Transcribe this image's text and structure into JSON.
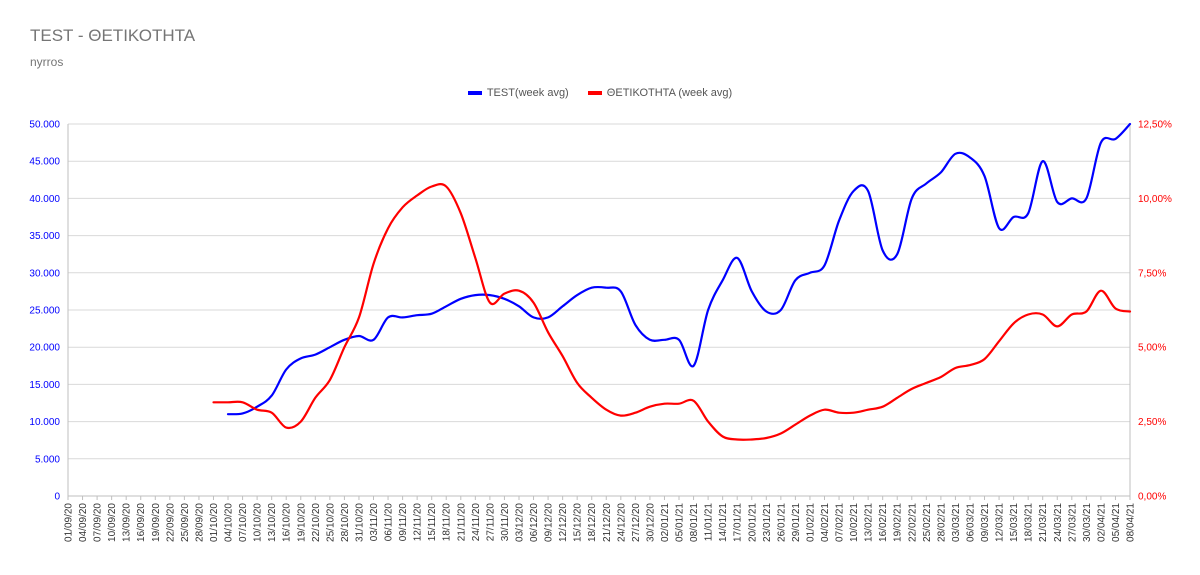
{
  "title": "TEST - ΘΕΤΙΚΟΤΗΤΑ",
  "subtitle": "nyrros",
  "chart_data": {
    "type": "line",
    "legend_position": "top-center",
    "grid": true,
    "x": [
      "01/09/20",
      "04/09/20",
      "07/09/20",
      "10/09/20",
      "13/09/20",
      "16/09/20",
      "19/09/20",
      "22/09/20",
      "25/09/20",
      "28/09/20",
      "01/10/20",
      "04/10/20",
      "07/10/20",
      "10/10/20",
      "13/10/20",
      "16/10/20",
      "19/10/20",
      "22/10/20",
      "25/10/20",
      "28/10/20",
      "31/10/20",
      "03/11/20",
      "06/11/20",
      "09/11/20",
      "12/11/20",
      "15/11/20",
      "18/11/20",
      "21/11/20",
      "24/11/20",
      "27/11/20",
      "30/11/20",
      "03/12/20",
      "06/12/20",
      "09/12/20",
      "12/12/20",
      "15/12/20",
      "18/12/20",
      "21/12/20",
      "24/12/20",
      "27/12/20",
      "30/12/20",
      "02/01/21",
      "05/01/21",
      "08/01/21",
      "11/01/21",
      "14/01/21",
      "17/01/21",
      "20/01/21",
      "23/01/21",
      "26/01/21",
      "29/01/21",
      "01/02/21",
      "04/02/21",
      "07/02/21",
      "10/02/21",
      "13/02/21",
      "16/02/21",
      "19/02/21",
      "22/02/21",
      "25/02/21",
      "28/02/21",
      "03/03/21",
      "06/03/21",
      "09/03/21",
      "12/03/21",
      "15/03/21",
      "18/03/21",
      "21/03/21",
      "24/03/21",
      "27/03/21",
      "30/03/21",
      "02/04/21",
      "05/04/21",
      "08/04/21"
    ],
    "y_left": {
      "ticks": [
        "0",
        "5.000",
        "10.000",
        "15.000",
        "20.000",
        "25.000",
        "30.000",
        "35.000",
        "40.000",
        "45.000",
        "50.000"
      ],
      "range": [
        0,
        50000
      ],
      "color": "#0000ff"
    },
    "y_right": {
      "ticks": [
        "0,00%",
        "2,50%",
        "5,00%",
        "7,50%",
        "10,00%",
        "12,50%"
      ],
      "range": [
        0,
        12.5
      ],
      "color": "#ff0000"
    },
    "series": [
      {
        "name": "TEST(week avg)",
        "axis": "left",
        "color": "#0000ff",
        "values": [
          null,
          null,
          null,
          null,
          null,
          null,
          null,
          null,
          null,
          null,
          null,
          11000,
          11100,
          12000,
          13500,
          17000,
          18500,
          19000,
          20000,
          21000,
          21500,
          21000,
          24000,
          24000,
          24300,
          24500,
          25500,
          26500,
          27000,
          27000,
          26500,
          25500,
          24000,
          24000,
          25500,
          27000,
          28000,
          28000,
          27500,
          23000,
          21000,
          21000,
          21000,
          17500,
          25000,
          29000,
          32000,
          27500,
          24800,
          25000,
          29000,
          30000,
          31000,
          37000,
          41000,
          41000,
          33000,
          32500,
          40000,
          42000,
          43500,
          46000,
          45500,
          43000,
          36000,
          37500,
          38000,
          45000,
          39500,
          40000,
          40000,
          47500,
          48000,
          50000
        ]
      },
      {
        "name": "ΘΕΤΙΚΟΤΗΤΑ (week avg)",
        "axis": "right",
        "color": "#ff0000",
        "values": [
          null,
          null,
          null,
          null,
          null,
          null,
          null,
          null,
          null,
          null,
          3.15,
          3.15,
          3.15,
          2.9,
          2.8,
          2.3,
          2.5,
          3.3,
          3.9,
          5.0,
          6.0,
          7.8,
          9.0,
          9.7,
          10.1,
          10.4,
          10.4,
          9.5,
          8.0,
          6.5,
          6.8,
          6.9,
          6.5,
          5.5,
          4.7,
          3.8,
          3.3,
          2.9,
          2.7,
          2.8,
          3.0,
          3.1,
          3.1,
          3.2,
          2.5,
          2.0,
          1.9,
          1.9,
          1.95,
          2.1,
          2.4,
          2.7,
          2.9,
          2.8,
          2.8,
          2.9,
          3.0,
          3.3,
          3.6,
          3.8,
          4.0,
          4.3,
          4.4,
          4.6,
          5.2,
          5.8,
          6.1,
          6.1,
          5.7,
          6.1,
          6.2,
          6.9,
          6.3,
          6.2
        ]
      }
    ]
  }
}
